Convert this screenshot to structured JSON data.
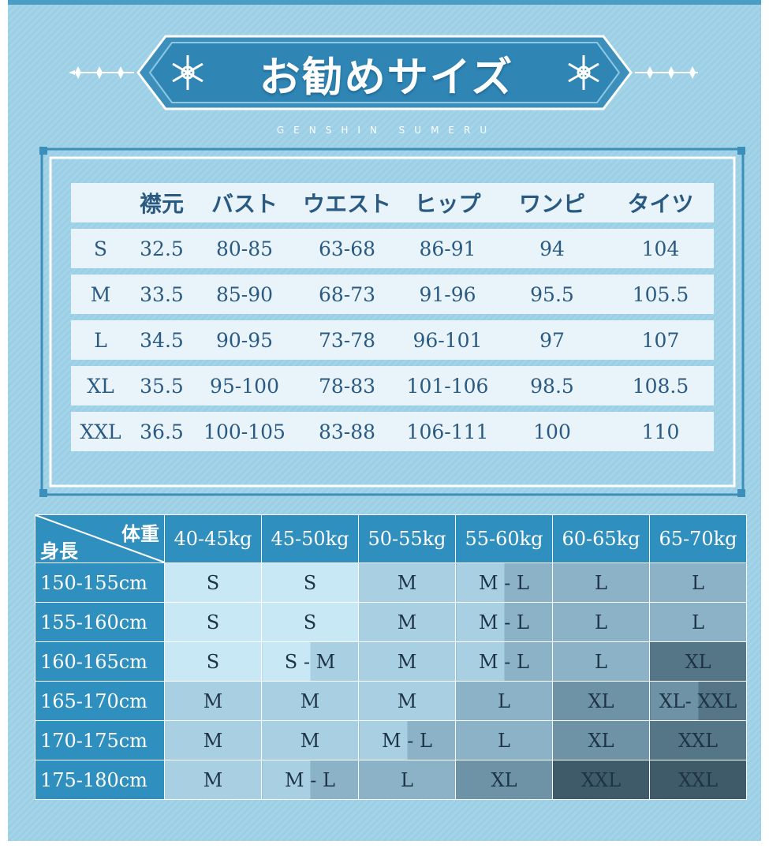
{
  "banner": {
    "title": "お勧めサイズ",
    "subtitle": "GENSHIN SUMERU"
  },
  "size_table": {
    "headers": [
      "",
      "襟元",
      "バスト",
      "ウエスト",
      "ヒップ",
      "ワンピ",
      "タイツ"
    ],
    "rows": [
      [
        "S",
        "32.5",
        "80-85",
        "63-68",
        "86-91",
        "94",
        "104"
      ],
      [
        "M",
        "33.5",
        "85-90",
        "68-73",
        "91-96",
        "95.5",
        "105.5"
      ],
      [
        "L",
        "34.5",
        "90-95",
        "73-78",
        "96-101",
        "97",
        "107"
      ],
      [
        "XL",
        "35.5",
        "95-100",
        "78-83",
        "101-106",
        "98.5",
        "108.5"
      ],
      [
        "XXL",
        "36.5",
        "100-105",
        "83-88",
        "106-111",
        "100",
        "110"
      ]
    ]
  },
  "chart": {
    "corner_weight": "体重",
    "corner_height": "身長",
    "weights": [
      "40-45kg",
      "45-50kg",
      "50-55kg",
      "55-60kg",
      "60-65kg",
      "65-70kg"
    ],
    "rows": [
      {
        "height": "150-155cm",
        "cells": [
          "S",
          "S",
          "M",
          "M - L",
          "L",
          "L"
        ]
      },
      {
        "height": "155-160cm",
        "cells": [
          "S",
          "S",
          "M",
          "M - L",
          "L",
          "L"
        ]
      },
      {
        "height": "160-165cm",
        "cells": [
          "S",
          "S - M",
          "M",
          "M - L",
          "L",
          "XL"
        ]
      },
      {
        "height": "165-170cm",
        "cells": [
          "M",
          "M",
          "M",
          "L",
          "XL",
          "XL- XXL"
        ]
      },
      {
        "height": "170-175cm",
        "cells": [
          "M",
          "M",
          "M - L",
          "L",
          "XL",
          "XXL"
        ]
      },
      {
        "height": "175-180cm",
        "cells": [
          "M",
          "M - L",
          "L",
          "XL",
          "XXL",
          "XXL"
        ]
      }
    ]
  },
  "colors": {
    "background": "#a4d4e9",
    "header_blue": "#2f8fbf",
    "text_blue": "#2a5a82"
  }
}
